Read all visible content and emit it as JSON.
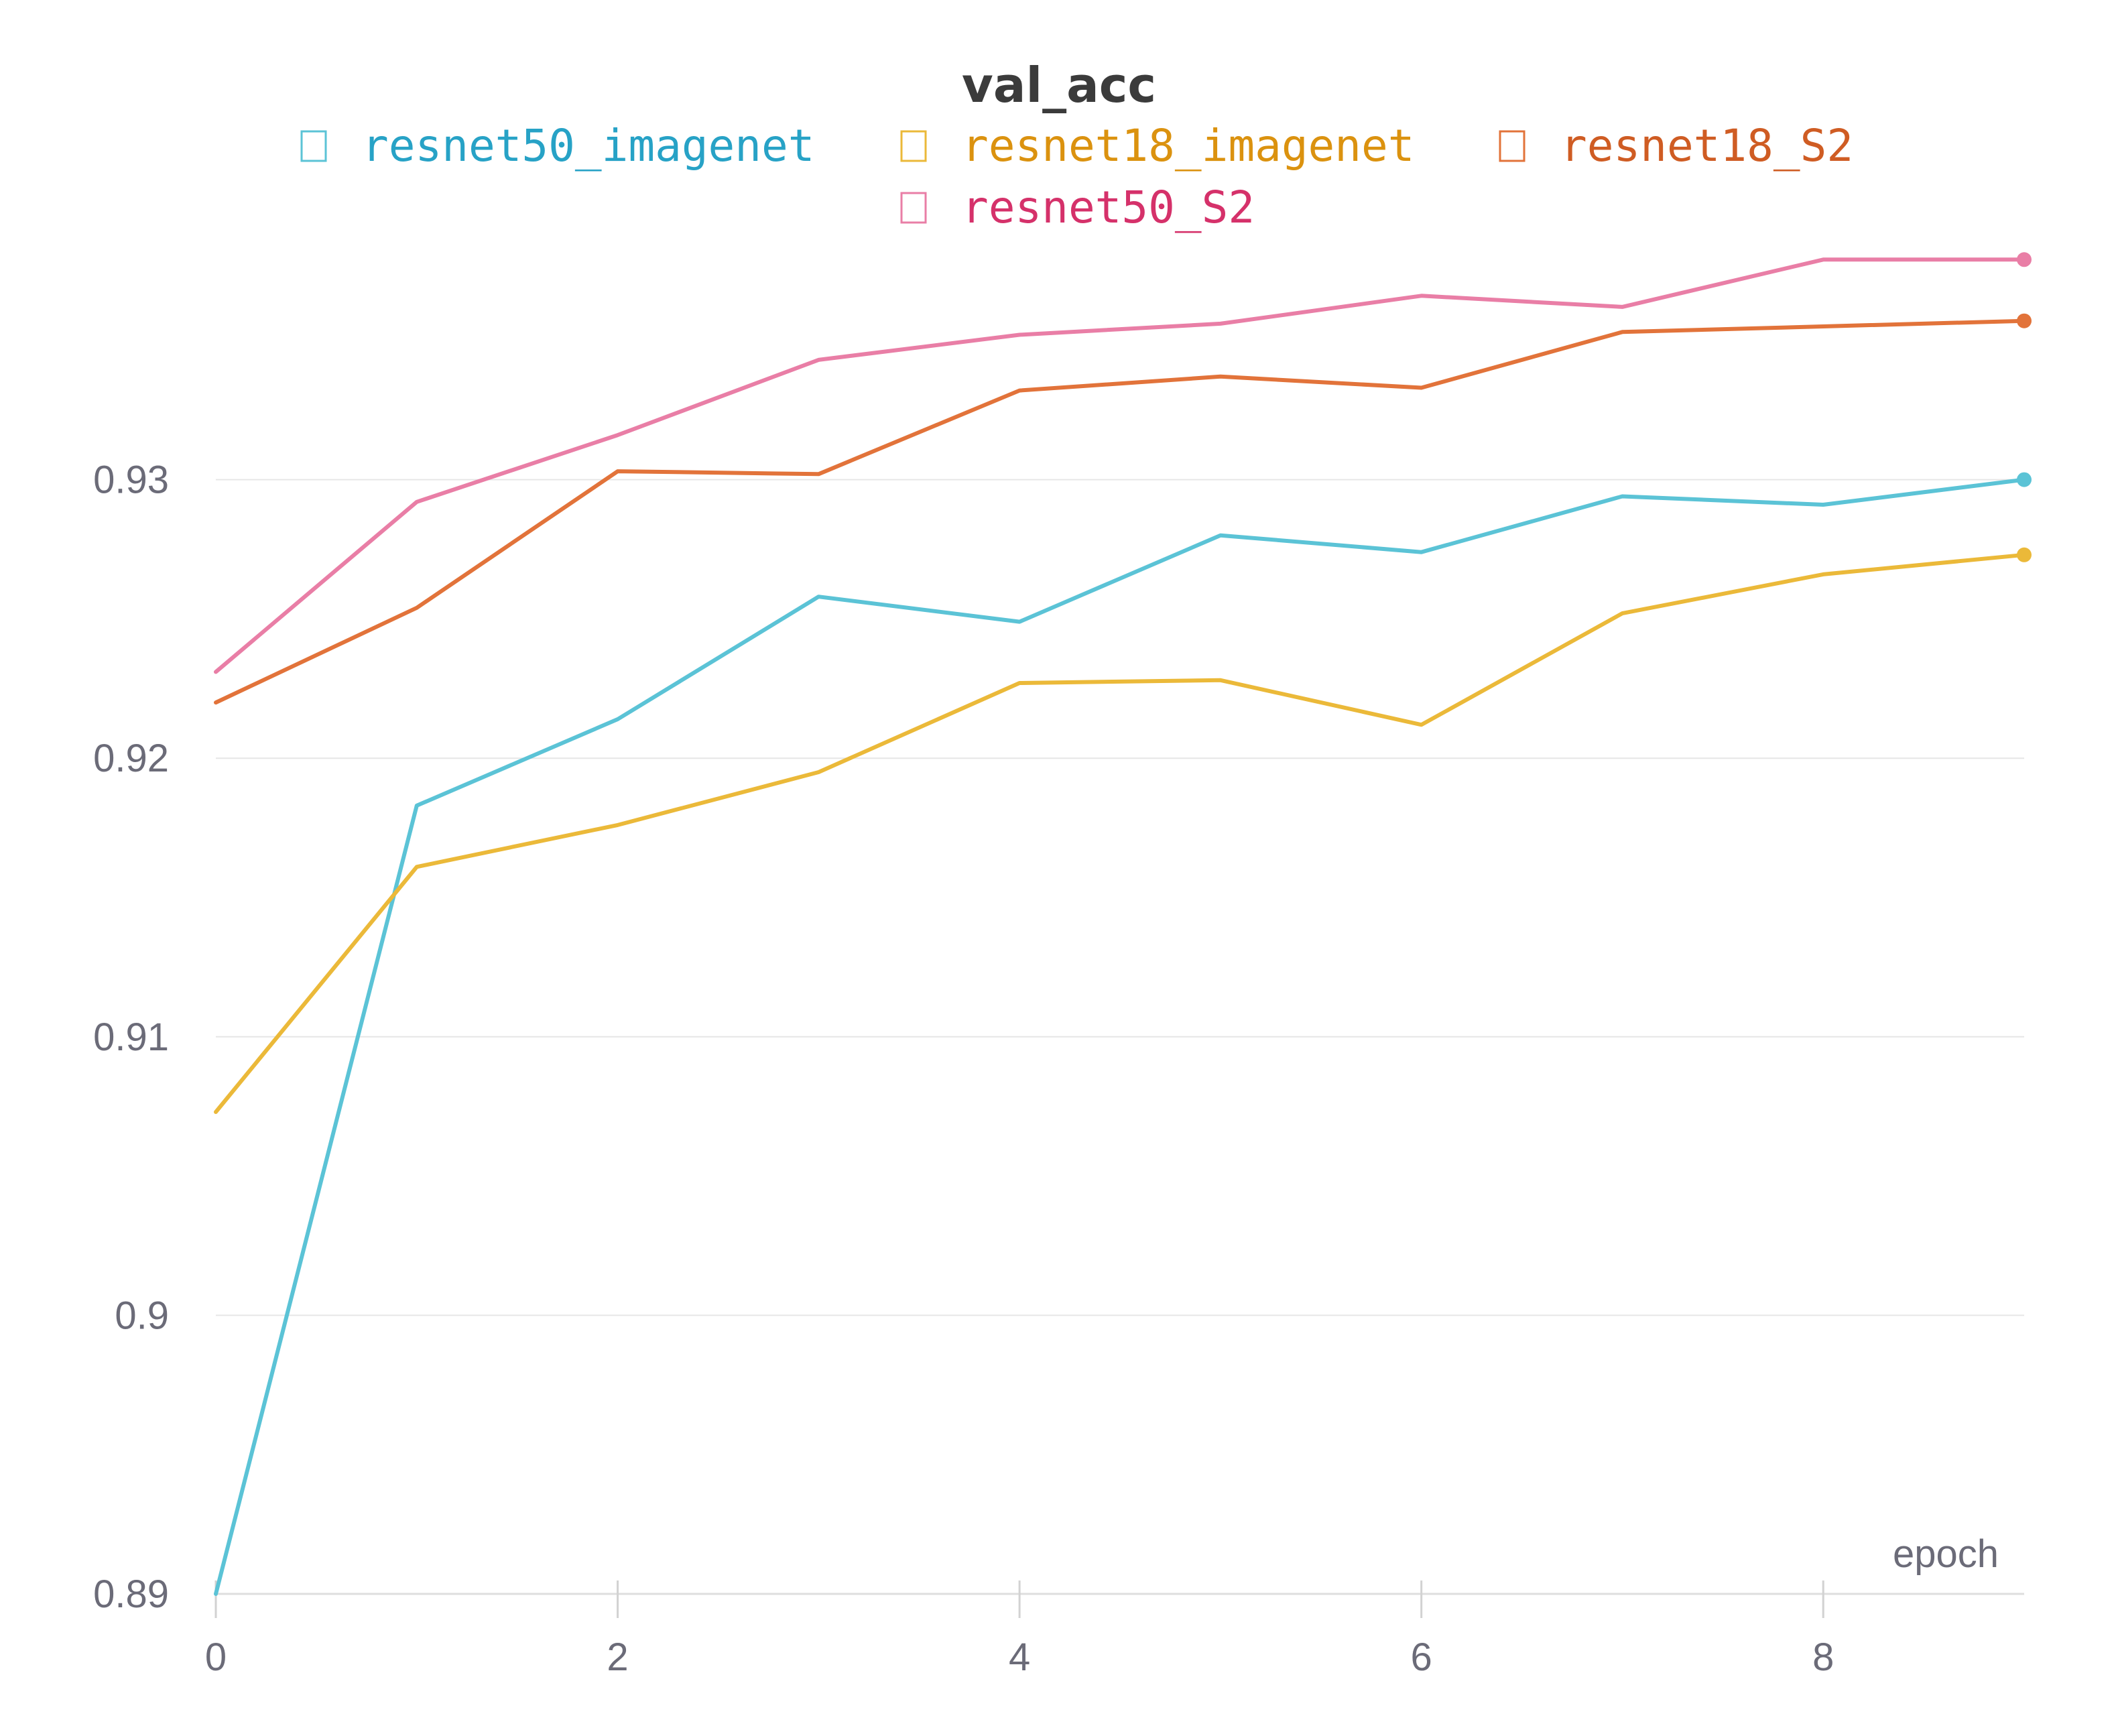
{
  "chart_data": {
    "type": "line",
    "title": "val_acc",
    "xlabel": "epoch",
    "ylabel": "",
    "xlim": [
      0,
      9
    ],
    "ylim": [
      0.89,
      0.94
    ],
    "xticks": [
      0,
      2,
      4,
      6,
      8
    ],
    "yticks": [
      0.89,
      0.9,
      0.91,
      0.92,
      0.93
    ],
    "ytick_labels": [
      "0.89",
      "0.9",
      "0.91",
      "0.92",
      "0.93"
    ],
    "grid": "horizontal",
    "legend_position": "top",
    "x": [
      0,
      1,
      2,
      3,
      4,
      5,
      6,
      7,
      8,
      9
    ],
    "series": [
      {
        "name": "resnet50_imagenet",
        "line_color": "#5bc3d6",
        "legend_color": "#27a2c6",
        "values": [
          0.89,
          0.9183,
          0.9214,
          0.9258,
          0.9249,
          0.928,
          0.9274,
          0.9294,
          0.9291,
          0.93
        ]
      },
      {
        "name": "resnet18_imagenet",
        "line_color": "#ebb939",
        "legend_color": "#db920f",
        "values": [
          0.9073,
          0.9161,
          0.9176,
          0.9195,
          0.9227,
          0.9228,
          0.9212,
          0.9252,
          0.9266,
          0.9273
        ]
      },
      {
        "name": "resnet18_S2",
        "line_color": "#e2733a",
        "legend_color": "#cf5c23",
        "values": [
          0.922,
          0.9254,
          0.9303,
          0.9302,
          0.9332,
          0.9337,
          0.9333,
          0.9353,
          0.9355,
          0.9357
        ]
      },
      {
        "name": "resnet50_S2",
        "line_color": "#e97ea6",
        "legend_color": "#d5316a",
        "values": [
          0.9231,
          0.9292,
          0.9316,
          0.9343,
          0.9352,
          0.9356,
          0.9366,
          0.9362,
          0.9379,
          0.9379
        ]
      }
    ]
  }
}
